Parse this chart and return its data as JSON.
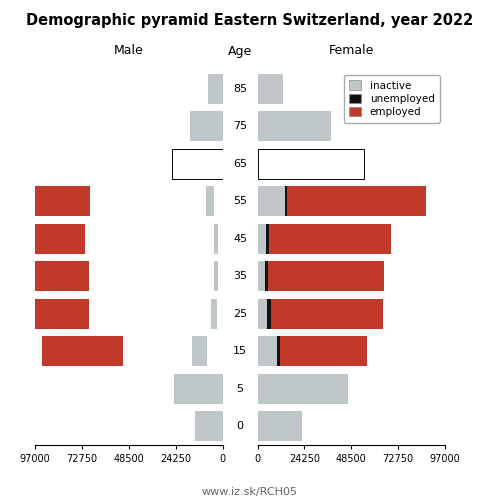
{
  "title": "Demographic pyramid Eastern Switzerland, year 2022",
  "label_male": "Male",
  "label_female": "Female",
  "label_age": "Age",
  "footer": "www.iz.sk/RCH05",
  "age_groups": [
    0,
    5,
    15,
    25,
    35,
    45,
    55,
    65,
    75,
    85
  ],
  "colors": {
    "inactive": "#bec6c8",
    "unemployed": "#111111",
    "employed": "#c0392b"
  },
  "male": {
    "inactive": [
      14000,
      25000,
      8000,
      3000,
      2200,
      2200,
      4200,
      26000,
      17000,
      7500
    ],
    "unemployed": [
      0,
      0,
      1400,
      1300,
      900,
      900,
      1600,
      0,
      0,
      0
    ],
    "employed": [
      0,
      0,
      42000,
      65000,
      66000,
      68000,
      63000,
      0,
      0,
      0
    ]
  },
  "female": {
    "inactive": [
      23000,
      47000,
      10000,
      5000,
      4000,
      4500,
      14000,
      55000,
      38000,
      13000
    ],
    "unemployed": [
      0,
      0,
      1700,
      2000,
      1300,
      1400,
      1300,
      0,
      0,
      0
    ],
    "employed": [
      0,
      0,
      45000,
      58000,
      60000,
      63000,
      72000,
      0,
      0,
      0
    ]
  },
  "xlim": 97000,
  "bar_height": 0.8
}
